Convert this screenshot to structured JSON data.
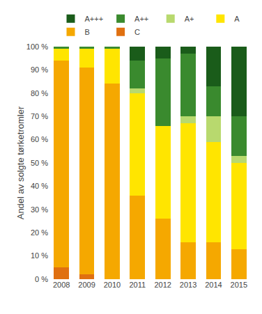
{
  "chart_data": {
    "type": "bar",
    "stacked": true,
    "categories": [
      "2008",
      "2009",
      "2010",
      "2011",
      "2012",
      "2013",
      "2014",
      "2015"
    ],
    "series": [
      {
        "name": "C",
        "color": "#E07010",
        "values": [
          5,
          2,
          0,
          0,
          0,
          0,
          0,
          0
        ]
      },
      {
        "name": "B",
        "color": "#F5A800",
        "values": [
          89,
          89,
          84,
          36,
          26,
          16,
          16,
          13
        ]
      },
      {
        "name": "A",
        "color": "#FFE500",
        "values": [
          5,
          8,
          15,
          44,
          40,
          51,
          43,
          37
        ]
      },
      {
        "name": "A+",
        "color": "#B8D96E",
        "values": [
          0,
          0,
          0,
          2,
          0,
          3,
          11,
          3
        ]
      },
      {
        "name": "A++",
        "color": "#3A8A2E",
        "values": [
          1,
          1,
          1,
          12,
          29,
          27,
          13,
          17
        ]
      },
      {
        "name": "A+++",
        "color": "#1A5C1A",
        "values": [
          0,
          0,
          0,
          6,
          5,
          3,
          17,
          30
        ]
      }
    ],
    "ylabel": "Andel av solgte tørketromler",
    "ylim": [
      0,
      100
    ],
    "yticks": [
      {
        "value": 0,
        "label": "0 %"
      },
      {
        "value": 10,
        "label": "10 %"
      },
      {
        "value": 20,
        "label": "20 %"
      },
      {
        "value": 30,
        "label": "30 %"
      },
      {
        "value": 40,
        "label": "40 %"
      },
      {
        "value": 50,
        "label": "50 %"
      },
      {
        "value": 60,
        "label": "60 %"
      },
      {
        "value": 70,
        "label": "70 %"
      },
      {
        "value": 80,
        "label": "80 %"
      },
      {
        "value": 90,
        "label": "90 %"
      },
      {
        "value": 100,
        "label": "100 %"
      }
    ],
    "grid": false,
    "legend": "top"
  }
}
